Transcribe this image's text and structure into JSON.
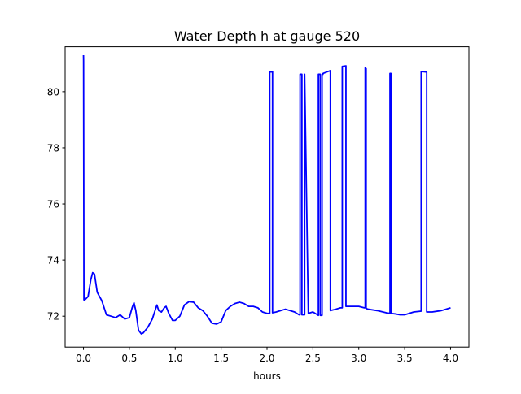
{
  "chart_data": {
    "type": "line",
    "title": "Water Depth h at gauge 520",
    "xlabel": "hours",
    "ylabel": "",
    "xlim": [
      -0.2,
      4.2
    ],
    "ylim": [
      70.9,
      81.6
    ],
    "grid": false,
    "xticks": [
      0.0,
      0.5,
      1.0,
      1.5,
      2.0,
      2.5,
      3.0,
      3.5,
      4.0
    ],
    "xtick_labels": [
      "0.0",
      "0.5",
      "1.0",
      "1.5",
      "2.0",
      "2.5",
      "3.0",
      "3.5",
      "4.0"
    ],
    "yticks": [
      72,
      74,
      76,
      78,
      80
    ],
    "ytick_labels": [
      "72",
      "74",
      "76",
      "78",
      "80"
    ],
    "series": [
      {
        "color": "#0000ff",
        "x": [
          0.0,
          0.001,
          0.005,
          0.01,
          0.02,
          0.05,
          0.08,
          0.1,
          0.12,
          0.15,
          0.2,
          0.25,
          0.3,
          0.35,
          0.4,
          0.45,
          0.5,
          0.53,
          0.55,
          0.57,
          0.6,
          0.63,
          0.65,
          0.7,
          0.75,
          0.8,
          0.82,
          0.85,
          0.88,
          0.9,
          0.93,
          0.97,
          1.0,
          1.05,
          1.1,
          1.15,
          1.2,
          1.25,
          1.3,
          1.35,
          1.4,
          1.45,
          1.5,
          1.55,
          1.6,
          1.65,
          1.7,
          1.75,
          1.8,
          1.85,
          1.9,
          1.95,
          2.0,
          2.03,
          2.03,
          2.06,
          2.06,
          2.1,
          2.2,
          2.3,
          2.35,
          2.36,
          2.36,
          2.38,
          2.38,
          2.41,
          2.41,
          2.45,
          2.5,
          2.55,
          2.56,
          2.56,
          2.58,
          2.58,
          2.6,
          2.6,
          2.61,
          2.61,
          2.65,
          2.69,
          2.69,
          2.75,
          2.8,
          2.82,
          2.82,
          2.86,
          2.86,
          2.9,
          3.0,
          3.06,
          3.07,
          3.07,
          3.08,
          3.08,
          3.1,
          3.2,
          3.3,
          3.34,
          3.34,
          3.35,
          3.35,
          3.4,
          3.45,
          3.5,
          3.6,
          3.68,
          3.68,
          3.74,
          3.74,
          3.8,
          3.9,
          4.0
        ],
        "y": [
          81.3,
          81.1,
          72.58,
          72.58,
          72.6,
          72.7,
          73.3,
          73.55,
          73.5,
          72.85,
          72.55,
          72.05,
          72.0,
          71.95,
          72.05,
          71.9,
          71.95,
          72.3,
          72.48,
          72.2,
          71.5,
          71.37,
          71.4,
          71.6,
          71.9,
          72.4,
          72.2,
          72.15,
          72.3,
          72.35,
          72.1,
          71.85,
          71.85,
          72.0,
          72.4,
          72.52,
          72.5,
          72.3,
          72.2,
          72.0,
          71.75,
          71.72,
          71.8,
          72.2,
          72.35,
          72.45,
          72.5,
          72.45,
          72.35,
          72.35,
          72.3,
          72.15,
          72.1,
          72.1,
          80.7,
          80.72,
          72.12,
          72.15,
          72.25,
          72.15,
          72.05,
          72.05,
          80.62,
          80.62,
          72.05,
          72.05,
          80.62,
          72.1,
          72.15,
          72.05,
          72.03,
          80.62,
          80.62,
          72.03,
          72.03,
          80.62,
          80.62,
          80.65,
          80.7,
          80.75,
          72.2,
          72.25,
          72.3,
          72.3,
          80.9,
          80.92,
          72.35,
          72.35,
          72.35,
          72.3,
          72.3,
          80.85,
          80.82,
          72.28,
          72.25,
          72.2,
          72.12,
          72.1,
          80.65,
          80.65,
          72.1,
          72.08,
          72.05,
          72.05,
          72.15,
          72.18,
          80.72,
          80.7,
          72.15,
          72.15,
          72.2,
          72.3
        ]
      }
    ]
  }
}
